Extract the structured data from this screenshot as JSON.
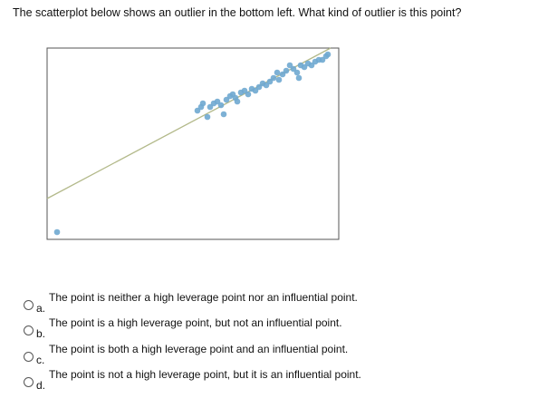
{
  "question": "The scatterplot below shows an outlier in the bottom left.  What kind of outlier is this point?",
  "chart_data": {
    "type": "scatter",
    "xlim": [
      0,
      322
    ],
    "ylim": [
      0,
      211
    ],
    "color": "#6fa8d0",
    "x": [
      11,
      166,
      170,
      172,
      177,
      180,
      184,
      188,
      192,
      195,
      198,
      202,
      205,
      208,
      210,
      214,
      218,
      222,
      226,
      230,
      234,
      238,
      242,
      246,
      250,
      254,
      256,
      260,
      264,
      268,
      272,
      276,
      280,
      284,
      288,
      292,
      296,
      300,
      304,
      308,
      310,
      278
    ],
    "y": [
      8,
      142,
      146,
      150,
      135,
      146,
      150,
      152,
      148,
      138,
      154,
      158,
      160,
      156,
      152,
      162,
      164,
      160,
      166,
      164,
      168,
      172,
      170,
      174,
      178,
      184,
      176,
      182,
      186,
      192,
      188,
      184,
      192,
      190,
      194,
      192,
      196,
      198,
      198,
      202,
      204,
      178
    ],
    "trend_line": {
      "color": "#b3b98a",
      "x": [
        0,
        313
      ],
      "y": [
        45,
        211
      ]
    }
  },
  "options": [
    {
      "letter": "a.",
      "text": "The point is neither a high leverage point nor an influential point."
    },
    {
      "letter": "b.",
      "text": "The point is a high leverage point, but not an influential point."
    },
    {
      "letter": "c.",
      "text": "The point is both a high leverage point and an influential point."
    },
    {
      "letter": "d.",
      "text": "The point is not a high leverage point, but it is an influential point."
    }
  ]
}
